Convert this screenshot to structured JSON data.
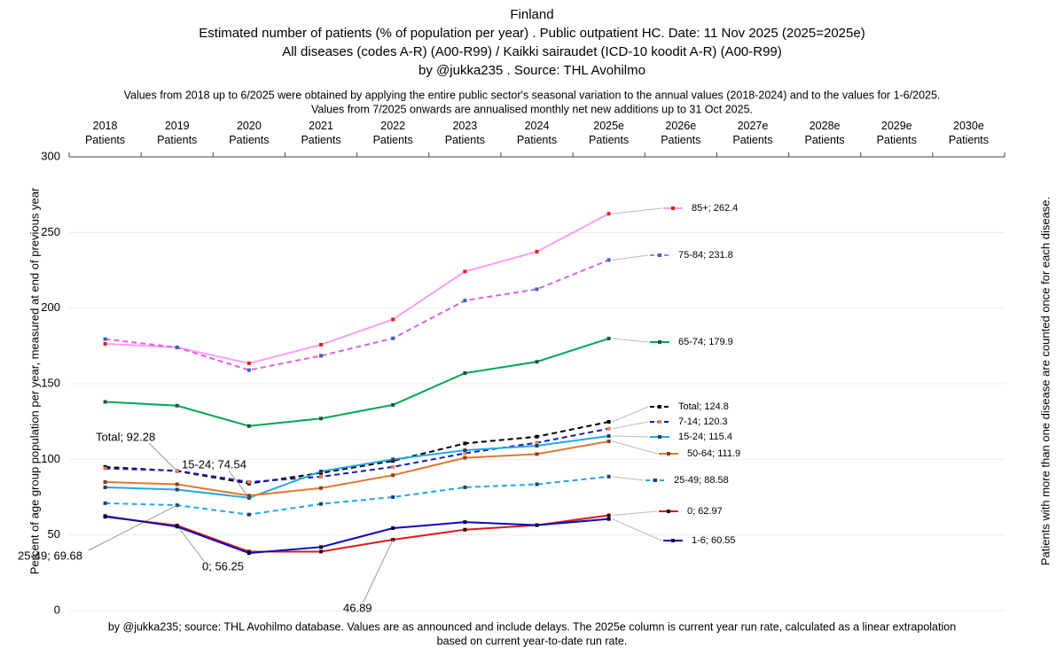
{
  "chart_data": {
    "type": "line",
    "title_lines": [
      "Finland",
      "Estimated number of patients  (% of population per year) . Public outpatient HC. Date: 11 Nov 2025 (2025=2025e)",
      "All diseases (codes A-R) (A00-R99) / Kaikki sairaudet (ICD-10 koodit A-R) (A00-R99)",
      "by @jukka235 . Source: THL Avohilmo"
    ],
    "note_lines": [
      "Values from 2018 up to 6/2025 were obtained by applying the entire public sector's seasonal variation to the annual values (2018-2024) and to the values for 1-6/2025.",
      "Values from 7/2025 onwards are annualised monthly net new additions up to 31 Oct 2025."
    ],
    "footer_lines": [
      "by @jukka235; source: THL Avohilmo database. Values are as announced and include delays. The 2025e column is current year run rate, calculated as a linear extrapolation",
      "based on current year-to-date run rate."
    ],
    "y_label": "Percent of age group population per year, measured at end of previous year",
    "right_label": "Patients with more than one disease are counted once for each disease.",
    "categories": [
      "2018 Patients",
      "2019 Patients",
      "2020 Patients",
      "2021 Patients",
      "2022 Patients",
      "2023 Patients",
      "2024 Patients",
      "2025e Patients",
      "2026e Patients",
      "2027e Patients",
      "2028e Patients",
      "2029e Patients",
      "2030e Patients"
    ],
    "ylim": [
      0,
      300
    ],
    "yticks": [
      0,
      50,
      100,
      150,
      200,
      250,
      300
    ],
    "grid": true,
    "series": [
      {
        "color": "#ff9cff",
        "marker_color": "#e02020",
        "dash": false,
        "values": [
          176.4,
          174,
          163.5,
          175.8,
          192.5,
          224.2,
          237.3,
          262.4,
          null,
          null,
          null,
          null,
          null
        ],
        "value_labels": [
          null,
          null,
          null,
          null,
          null,
          null,
          null,
          "85+; 262.4",
          null,
          null,
          null,
          null,
          null
        ]
      },
      {
        "color": "#e060e0",
        "marker_color": "#4060c0",
        "dash": true,
        "values": [
          179.5,
          174,
          159,
          168.5,
          180,
          205,
          212.5,
          231.8,
          null,
          null,
          null,
          null,
          null
        ],
        "value_labels": [
          null,
          null,
          null,
          null,
          null,
          null,
          null,
          "75-84; 231.8",
          null,
          null,
          null,
          null,
          null
        ]
      },
      {
        "color": "#00a850",
        "marker_color": "#205040",
        "dash": false,
        "values": [
          138,
          135.5,
          122,
          127,
          136,
          157,
          164.5,
          179.9,
          null,
          null,
          null,
          null,
          null
        ],
        "value_labels": [
          null,
          null,
          null,
          null,
          null,
          null,
          null,
          "65-74; 179.9",
          null,
          null,
          null,
          null,
          null
        ]
      },
      {
        "color": "#000000",
        "marker_color": "#000000",
        "dash": true,
        "values": [
          95,
          92.28,
          84,
          91,
          99,
          110.5,
          115,
          124.8,
          null,
          null,
          null,
          null,
          null
        ],
        "value_labels": [
          null,
          "Total; 92.28",
          null,
          null,
          null,
          null,
          null,
          "Total; 124.8",
          null,
          null,
          null,
          null,
          null
        ]
      },
      {
        "color": "#1a1ab0",
        "marker_color": "#e08060",
        "dash": true,
        "values": [
          94,
          92.5,
          85,
          88.5,
          95,
          104,
          111,
          120.3,
          null,
          null,
          null,
          null,
          null
        ],
        "value_labels": [
          null,
          null,
          null,
          null,
          null,
          null,
          null,
          "7-14; 120.3",
          null,
          null,
          null,
          null,
          null
        ]
      },
      {
        "color": "#20a8e8",
        "marker_color": "#204060",
        "dash": false,
        "values": [
          81.5,
          80,
          74.54,
          92,
          100,
          106,
          109,
          115.4,
          null,
          null,
          null,
          null,
          null
        ],
        "value_labels": [
          null,
          null,
          "15-24; 74.54",
          null,
          null,
          null,
          null,
          "15-24; 115.4",
          null,
          null,
          null,
          null,
          null
        ]
      },
      {
        "color": "#e07830",
        "marker_color": "#804020",
        "dash": false,
        "values": [
          85,
          83.5,
          76,
          81,
          89.5,
          101,
          103.5,
          111.9,
          null,
          null,
          null,
          null,
          null
        ],
        "value_labels": [
          null,
          null,
          null,
          null,
          null,
          null,
          null,
          "50-64; 111.9",
          null,
          null,
          null,
          null,
          null
        ]
      },
      {
        "color": "#20a8e8",
        "marker_color": "#204060",
        "dash": true,
        "values": [
          71,
          69.68,
          63.5,
          70.5,
          75,
          81.5,
          83.5,
          88.58,
          null,
          null,
          null,
          null,
          null
        ],
        "value_labels": [
          null,
          "25-49; 69.68",
          null,
          null,
          null,
          null,
          null,
          "25-49; 88.58",
          null,
          null,
          null,
          null,
          null
        ]
      },
      {
        "color": "#e01818",
        "marker_color": "#400000",
        "dash": false,
        "values": [
          62,
          56.25,
          39,
          39,
          46.89,
          53.5,
          56.5,
          62.97,
          null,
          null,
          null,
          null,
          null
        ],
        "value_labels": [
          null,
          "0; 56.25",
          null,
          null,
          "46.89",
          null,
          null,
          "0; 62.97",
          null,
          null,
          null,
          null,
          null
        ]
      },
      {
        "color": "#0a0ab8",
        "marker_color": "#000040",
        "dash": false,
        "values": [
          62.5,
          55.5,
          38,
          42,
          54.5,
          58.5,
          56.5,
          60.55,
          null,
          null,
          null,
          null,
          null
        ],
        "value_labels": [
          null,
          null,
          null,
          null,
          null,
          null,
          null,
          "1-6; 60.55",
          null,
          null,
          null,
          null,
          null
        ]
      }
    ]
  }
}
